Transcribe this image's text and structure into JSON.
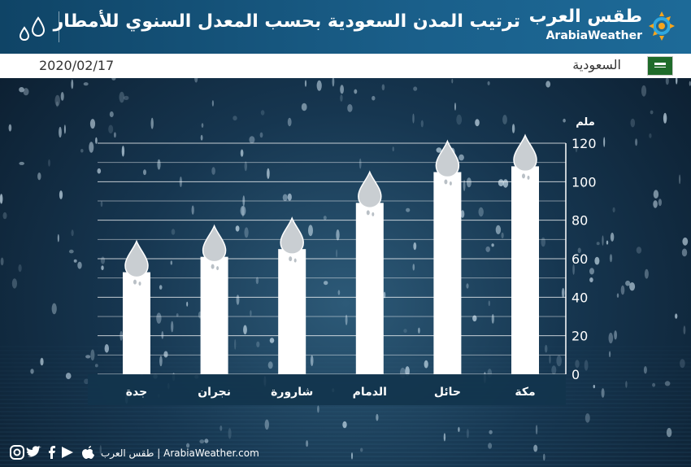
{
  "header": {
    "title": "ترتيب المدن السعودية بحسب المعدل السنوي للأمطار",
    "logo_ar": "طقس العرب",
    "logo_en": "ArabiaWeather",
    "icons": [
      "raindrops-icon",
      "sun-swirl-logo-icon"
    ]
  },
  "infobar": {
    "date": "2020/02/17",
    "country": "السعودية",
    "flag_color": "#1f6b2a"
  },
  "chart_data": {
    "type": "bar",
    "categories": [
      "جدة",
      "نجران",
      "شارورة",
      "الدمام",
      "حائل",
      "مكة"
    ],
    "values": [
      53,
      61,
      65,
      89,
      105,
      108
    ],
    "unit": "ملم",
    "ylim": [
      0,
      120
    ],
    "yticks": [
      0,
      20,
      40,
      60,
      80,
      100,
      120
    ],
    "grid": true,
    "bar_color": "#ffffff",
    "drop_color": "#c9ced2"
  },
  "footer": {
    "text": "طقس العرب | ArabiaWeather.com",
    "icons": [
      "instagram-icon",
      "twitter-icon",
      "facebook-icon",
      "google-play-icon",
      "apple-icon"
    ]
  }
}
